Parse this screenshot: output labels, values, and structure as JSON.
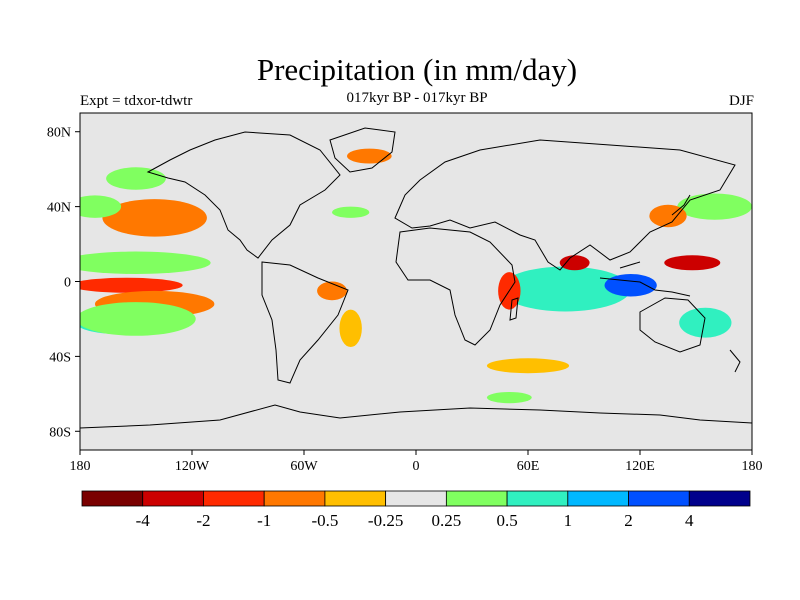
{
  "title": "Precipitation (in mm/day)",
  "subtitle": "017kyr BP - 017kyr BP",
  "experiment_label": "Expt = tdxor-tdwtr",
  "season_label": "DJF",
  "map": {
    "projection": "cylindrical-equidistant",
    "lat_range": [
      -90,
      90
    ],
    "lon_range": [
      -180,
      180
    ],
    "lat_ticks": [
      {
        "value": 80,
        "label": "80N"
      },
      {
        "value": 40,
        "label": "40N"
      },
      {
        "value": 0,
        "label": "0"
      },
      {
        "value": -40,
        "label": "40S"
      },
      {
        "value": -80,
        "label": "80S"
      }
    ],
    "lon_ticks": [
      {
        "value": -180,
        "label": "180"
      },
      {
        "value": -120,
        "label": "120W"
      },
      {
        "value": -60,
        "label": "60W"
      },
      {
        "value": 0,
        "label": "0"
      },
      {
        "value": 60,
        "label": "60E"
      },
      {
        "value": 120,
        "label": "120E"
      },
      {
        "value": 180,
        "label": "180"
      }
    ],
    "background_color": "#e6e6e6"
  },
  "colorbar": {
    "colors": [
      "#7a0000",
      "#cc0000",
      "#ff2a00",
      "#ff7800",
      "#ffbf00",
      "#e6e6e6",
      "#80ff60",
      "#30f0c0",
      "#00b8ff",
      "#0050ff",
      "#00008c"
    ],
    "labels": [
      "-4",
      "-2",
      "-1",
      "-0.5",
      "-0.25",
      "0.25",
      "0.5",
      "1",
      "2",
      "4"
    ]
  },
  "anomaly_regions": [
    {
      "name": "north-pacific-dry",
      "lon": -145,
      "lat": 33,
      "rx": 18,
      "ry": 6,
      "color": "#ff2a00"
    },
    {
      "name": "north-pacific-dry-outer",
      "lon": -140,
      "lat": 34,
      "rx": 28,
      "ry": 10,
      "color": "#ff7800"
    },
    {
      "name": "north-pacific-wet",
      "lon": -172,
      "lat": 40,
      "rx": 14,
      "ry": 6,
      "color": "#80ff60"
    },
    {
      "name": "alaska-wet",
      "lon": -150,
      "lat": 55,
      "rx": 16,
      "ry": 6,
      "color": "#80ff60"
    },
    {
      "name": "east-pacific-wet-band",
      "lon": -150,
      "lat": 9,
      "rx": 32,
      "ry": 3,
      "color": "#00b8ff"
    },
    {
      "name": "east-pacific-wet-outer",
      "lon": -150,
      "lat": 10,
      "rx": 40,
      "ry": 6,
      "color": "#80ff60"
    },
    {
      "name": "equatorial-pacific-dry",
      "lon": -155,
      "lat": -2,
      "rx": 30,
      "ry": 4,
      "color": "#ff2a00"
    },
    {
      "name": "south-pacific-dry",
      "lon": -140,
      "lat": -12,
      "rx": 32,
      "ry": 7,
      "color": "#ff7800"
    },
    {
      "name": "south-pacific-wet",
      "lon": -160,
      "lat": -22,
      "rx": 22,
      "ry": 6,
      "color": "#30f0c0"
    },
    {
      "name": "south-pacific-wet-outer",
      "lon": -150,
      "lat": -20,
      "rx": 32,
      "ry": 9,
      "color": "#80ff60"
    },
    {
      "name": "amazon-dry",
      "lon": -45,
      "lat": -5,
      "rx": 8,
      "ry": 5,
      "color": "#ff7800"
    },
    {
      "name": "south-atlantic-dry",
      "lon": -35,
      "lat": -25,
      "rx": 6,
      "ry": 10,
      "color": "#ffbf00"
    },
    {
      "name": "indian-ocean-wet",
      "lon": 75,
      "lat": -5,
      "rx": 22,
      "ry": 8,
      "color": "#00b8ff"
    },
    {
      "name": "indian-ocean-wet-outer",
      "lon": 80,
      "lat": -4,
      "rx": 35,
      "ry": 12,
      "color": "#30f0c0"
    },
    {
      "name": "maritime-wet",
      "lon": 115,
      "lat": -2,
      "rx": 14,
      "ry": 6,
      "color": "#0050ff"
    },
    {
      "name": "east-africa-dry",
      "lon": 50,
      "lat": -5,
      "rx": 6,
      "ry": 10,
      "color": "#ff2a00"
    },
    {
      "name": "bay-of-bengal-dry",
      "lon": 85,
      "lat": 10,
      "rx": 8,
      "ry": 4,
      "color": "#cc0000"
    },
    {
      "name": "west-pacific-dry",
      "lon": 148,
      "lat": 10,
      "rx": 15,
      "ry": 4,
      "color": "#cc0000"
    },
    {
      "name": "north-west-pacific-wet",
      "lon": 160,
      "lat": 40,
      "rx": 20,
      "ry": 7,
      "color": "#80ff60"
    },
    {
      "name": "japan-dry",
      "lon": 135,
      "lat": 35,
      "rx": 10,
      "ry": 6,
      "color": "#ff7800"
    },
    {
      "name": "southern-ocean-dry",
      "lon": 60,
      "lat": -45,
      "rx": 22,
      "ry": 4,
      "color": "#ffbf00"
    },
    {
      "name": "southern-ocean-wet",
      "lon": 50,
      "lat": -62,
      "rx": 12,
      "ry": 3,
      "color": "#80ff60"
    },
    {
      "name": "australia-wet",
      "lon": 155,
      "lat": -22,
      "rx": 14,
      "ry": 8,
      "color": "#30f0c0"
    },
    {
      "name": "north-atlantic-dry",
      "lon": -25,
      "lat": 67,
      "rx": 12,
      "ry": 4,
      "color": "#ff7800"
    },
    {
      "name": "atlantic-wet",
      "lon": -35,
      "lat": 37,
      "rx": 10,
      "ry": 3,
      "color": "#80ff60"
    }
  ]
}
